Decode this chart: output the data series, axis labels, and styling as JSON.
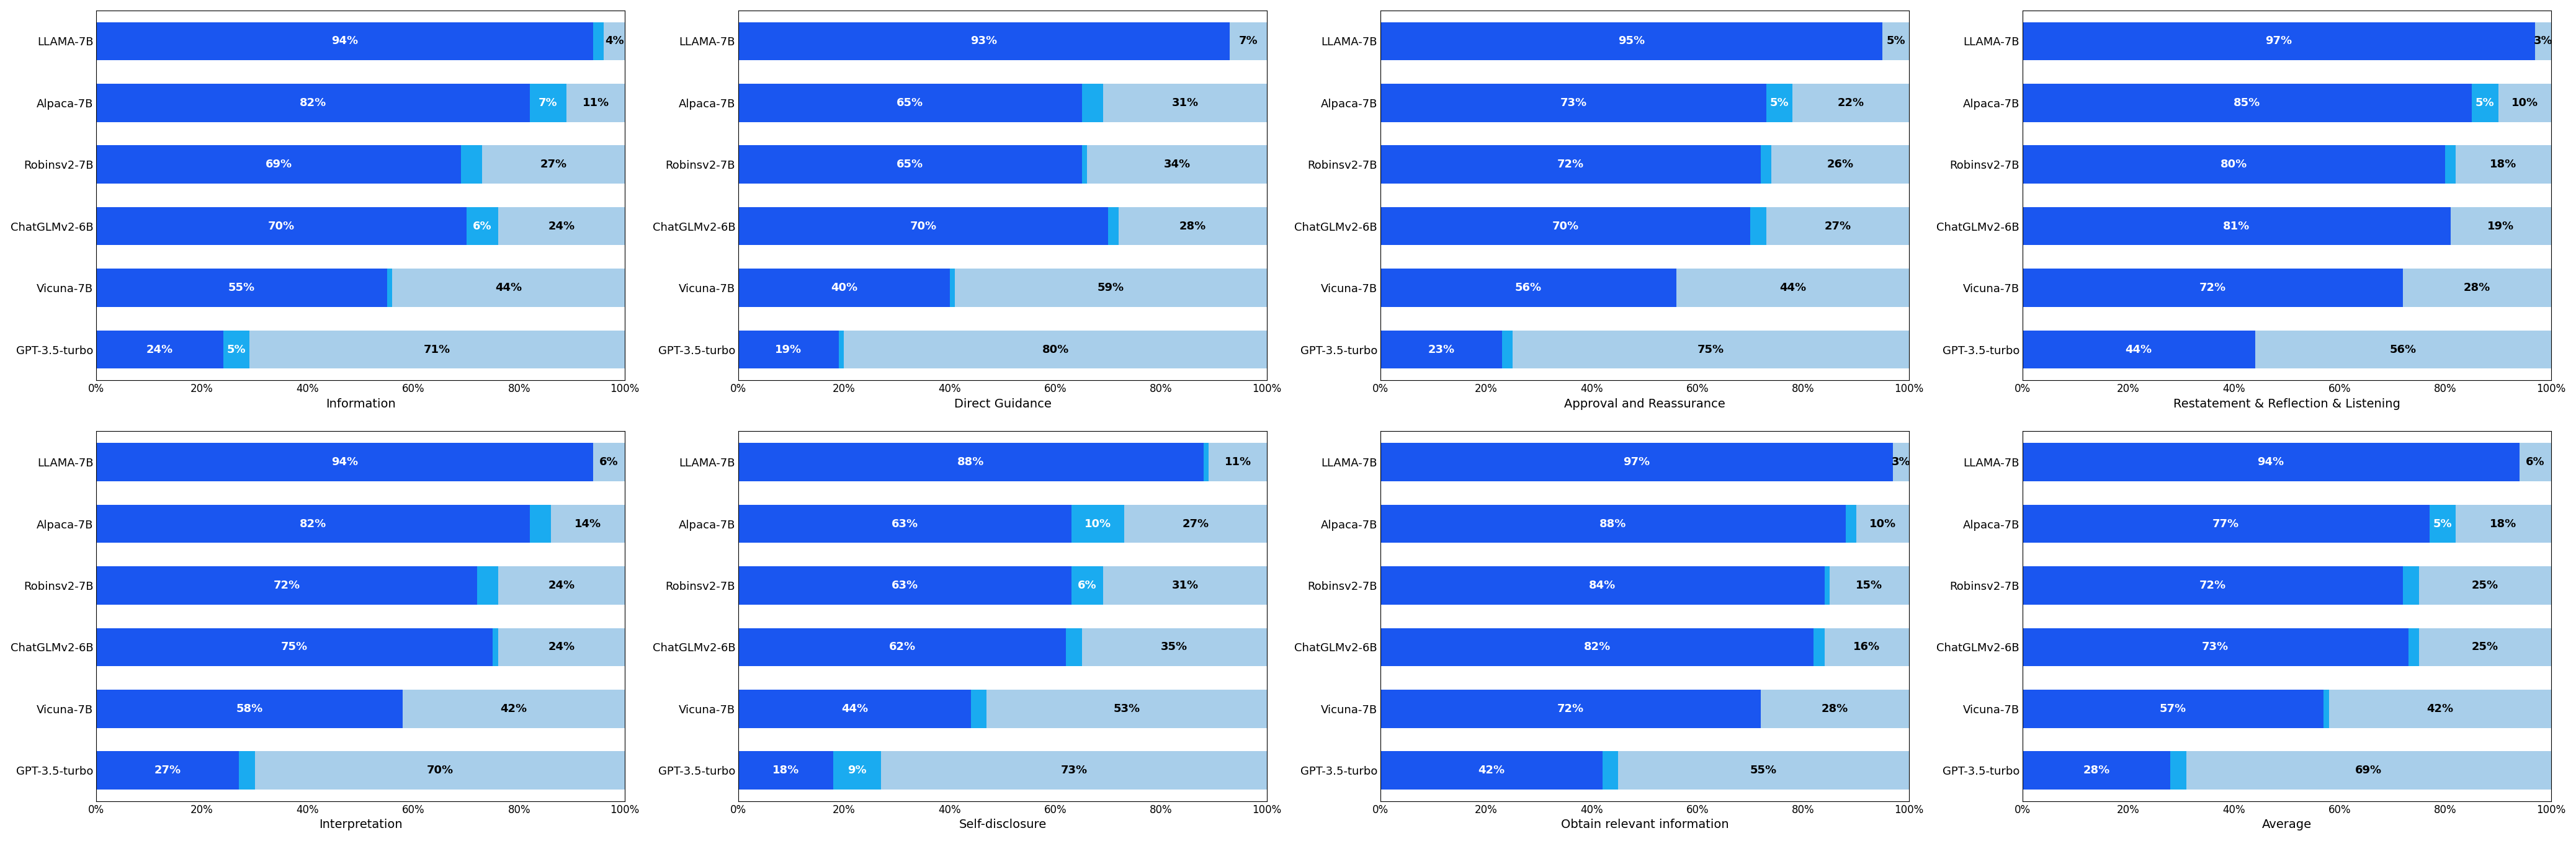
{
  "models": [
    "LLAMA-7B",
    "Alpaca-7B",
    "Robinsv2-7B",
    "ChatGLMv2-6B",
    "Vicuna-7B",
    "GPT-3.5-turbo"
  ],
  "subplots": [
    {
      "title": "Information",
      "data": [
        [
          94,
          2,
          4
        ],
        [
          82,
          7,
          11
        ],
        [
          69,
          4,
          27
        ],
        [
          70,
          6,
          24
        ],
        [
          55,
          1,
          44
        ],
        [
          24,
          5,
          71
        ]
      ]
    },
    {
      "title": "Direct Guidance",
      "data": [
        [
          93,
          0,
          7
        ],
        [
          65,
          4,
          31
        ],
        [
          65,
          1,
          34
        ],
        [
          70,
          2,
          28
        ],
        [
          40,
          1,
          59
        ],
        [
          19,
          1,
          80
        ]
      ]
    },
    {
      "title": "Approval and Reassurance",
      "data": [
        [
          95,
          0,
          5
        ],
        [
          73,
          5,
          22
        ],
        [
          72,
          2,
          26
        ],
        [
          70,
          3,
          27
        ],
        [
          56,
          0,
          44
        ],
        [
          23,
          2,
          75
        ]
      ]
    },
    {
      "title": "Restatement & Reflection & Listening",
      "data": [
        [
          97,
          0,
          3
        ],
        [
          85,
          5,
          10
        ],
        [
          80,
          2,
          18
        ],
        [
          81,
          0,
          19
        ],
        [
          72,
          0,
          28
        ],
        [
          44,
          0,
          56
        ]
      ]
    },
    {
      "title": "Interpretation",
      "data": [
        [
          94,
          0,
          6
        ],
        [
          82,
          4,
          14
        ],
        [
          72,
          4,
          24
        ],
        [
          75,
          1,
          24
        ],
        [
          58,
          0,
          42
        ],
        [
          27,
          3,
          70
        ]
      ]
    },
    {
      "title": "Self-disclosure",
      "data": [
        [
          88,
          1,
          11
        ],
        [
          63,
          10,
          27
        ],
        [
          63,
          6,
          31
        ],
        [
          62,
          3,
          35
        ],
        [
          44,
          3,
          53
        ],
        [
          18,
          9,
          73
        ]
      ]
    },
    {
      "title": "Obtain relevant information",
      "data": [
        [
          97,
          0,
          3
        ],
        [
          88,
          2,
          10
        ],
        [
          84,
          1,
          15
        ],
        [
          82,
          2,
          16
        ],
        [
          72,
          0,
          28
        ],
        [
          42,
          3,
          55
        ]
      ]
    },
    {
      "title": "Average",
      "data": [
        [
          94,
          0,
          6
        ],
        [
          77,
          5,
          18
        ],
        [
          72,
          3,
          25
        ],
        [
          73,
          2,
          25
        ],
        [
          57,
          1,
          42
        ],
        [
          28,
          3,
          69
        ]
      ]
    }
  ],
  "colors": {
    "dark_blue": "#1A56F0",
    "cyan": "#1AABF0",
    "light_blue": "#A8CEEA"
  },
  "bar_height": 0.62,
  "fontsize_title": 14,
  "fontsize_labels": 13,
  "fontsize_ticks": 12,
  "fontsize_bar_text": 13
}
